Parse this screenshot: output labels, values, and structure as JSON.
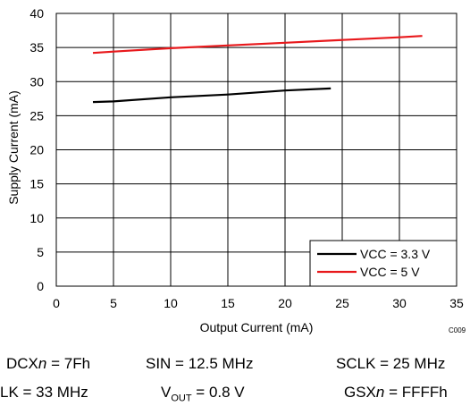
{
  "chart_data": {
    "type": "line",
    "xlabel": "Output Current (mA)",
    "ylabel": "Supply Current (mA)",
    "xlim": [
      0,
      35
    ],
    "ylim": [
      0,
      40
    ],
    "xticks": [
      0,
      5,
      10,
      15,
      20,
      25,
      30,
      35
    ],
    "yticks": [
      0,
      5,
      10,
      15,
      20,
      25,
      30,
      35,
      40
    ],
    "grid": true,
    "legend": "bottom-right",
    "code": "C009",
    "series": [
      {
        "name": "VCC = 3.3 V",
        "color": "#000000",
        "x": [
          3.2,
          5,
          10,
          15,
          20,
          24
        ],
        "y": [
          27.0,
          27.1,
          27.7,
          28.1,
          28.7,
          29.0
        ]
      },
      {
        "name": "VCC = 5 V",
        "color": "#e8191c",
        "x": [
          3.2,
          5,
          10,
          15,
          20,
          25,
          30,
          32
        ],
        "y": [
          34.2,
          34.4,
          34.9,
          35.3,
          35.7,
          36.1,
          36.5,
          36.7
        ]
      }
    ]
  },
  "captions": {
    "row1": {
      "dcx": {
        "prefix": "DCX",
        "var": "n",
        "suffix": " = 7Fh"
      },
      "sin": "SIN = 12.5 MHz",
      "sclk": "SCLK = 25 MHz"
    },
    "row2": {
      "lk": "LK = 33 MHz",
      "vout": {
        "prefix": "V",
        "sub": "OUT",
        "suffix": " = 0.8 V"
      },
      "gsx": {
        "prefix": "GSX",
        "var": "n",
        "suffix": " = FFFFh"
      }
    }
  }
}
